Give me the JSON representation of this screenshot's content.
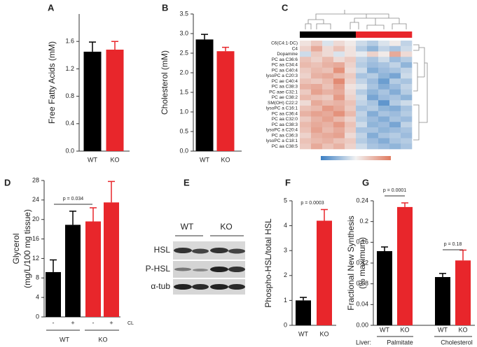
{
  "chart_data": [
    {
      "panel": "A",
      "type": "bar",
      "ylabel": [
        "Free Fatty Acids (mM)"
      ],
      "categories": [
        "WT",
        "KO"
      ],
      "values": [
        1.45,
        1.48
      ],
      "errors": [
        0.14,
        0.12
      ],
      "colors": [
        "#000000",
        "#e8262b"
      ],
      "ylim": [
        0,
        2.0
      ],
      "yticks": [
        {
          "value": 0,
          "label": "0.0"
        },
        0.4,
        0.8,
        1.2,
        1.6
      ]
    },
    {
      "panel": "B",
      "type": "bar",
      "ylabel": [
        "Cholesterol (mM)"
      ],
      "categories": [
        "WT",
        "KO"
      ],
      "values": [
        2.85,
        2.55
      ],
      "errors": [
        0.13,
        0.1
      ],
      "colors": [
        "#000000",
        "#e8262b"
      ],
      "ylim": [
        0,
        3.5
      ],
      "yticks": [
        {
          "value": 0,
          "label": "0.0"
        },
        0.5,
        {
          "value": 1,
          "label": "1.0"
        },
        1.5,
        {
          "value": 2,
          "label": "2.0"
        },
        2.5,
        {
          "value": 3,
          "label": "3.0"
        },
        3.5
      ]
    },
    {
      "panel": "C",
      "type": "heatmap",
      "rows": [
        "C6(C4:1-DC)",
        "C4",
        "Dopamine",
        "PC aa C36:6",
        "PC aa C34:4",
        "PC aa C40:4",
        "lysoPC a C20:3",
        "PC ae C40:4",
        "PC aa C38:3",
        "PC aae C32:1",
        "PC ae C38:2",
        "SM(OH) C22:2",
        "lysoPC a C16:1",
        "PC aa C36:4",
        "PC aa C32:0",
        "PC aa C38:3",
        "lysoPC a C20:4",
        "PC aa C36:3",
        "lysoPC a C18:1",
        "PC aa C38:5"
      ],
      "column_colors": [
        "#000000",
        "#000000",
        "#000000",
        "#000000",
        "#000000",
        "#e8262b",
        "#e8262b",
        "#e8262b",
        "#e8262b",
        "#e8262b"
      ],
      "clim": [
        -1.5,
        1.5
      ],
      "values": [
        [
          0.2,
          0.5,
          -0.2,
          0.3,
          0.1,
          -0.3,
          -0.5,
          -0.2,
          0.1,
          -0.4
        ],
        [
          0.4,
          0.9,
          0.3,
          0.6,
          0.2,
          -0.5,
          -0.8,
          -0.4,
          -0.6,
          -0.3
        ],
        [
          -0.3,
          0.5,
          0.3,
          -0.2,
          0.2,
          -0.1,
          0.4,
          0.1,
          0.9,
          0.3
        ],
        [
          0.6,
          0.4,
          0.7,
          0.3,
          0.5,
          -0.4,
          -0.6,
          -0.3,
          -0.7,
          -0.5
        ],
        [
          0.7,
          0.6,
          0.8,
          0.9,
          0.4,
          -0.5,
          -0.7,
          -0.6,
          -0.4,
          -0.8
        ],
        [
          0.5,
          0.7,
          0.6,
          1.2,
          0.3,
          -0.3,
          -0.9,
          -0.7,
          -0.6,
          -0.4
        ],
        [
          0.4,
          0.8,
          0.9,
          0.7,
          0.5,
          -0.6,
          -0.5,
          -0.8,
          -1.0,
          -0.3
        ],
        [
          0.6,
          0.5,
          0.7,
          1.3,
          0.4,
          -0.4,
          -0.7,
          -1.1,
          -0.5,
          -0.6
        ],
        [
          0.8,
          0.9,
          0.6,
          1.0,
          0.2,
          -0.2,
          -0.6,
          -0.9,
          -0.7,
          -0.4
        ],
        [
          0.5,
          1.0,
          0.8,
          0.9,
          0.3,
          -0.5,
          -0.8,
          -0.6,
          -0.9,
          -0.5
        ],
        [
          0.7,
          0.6,
          0.5,
          1.1,
          0.4,
          -0.3,
          -1.0,
          -0.7,
          -0.6,
          -0.8
        ],
        [
          0.3,
          0.9,
          0.7,
          0.8,
          0.6,
          -0.4,
          -0.6,
          -1.2,
          -0.5,
          -0.3
        ],
        [
          0.6,
          0.7,
          1.1,
          0.9,
          0.5,
          -0.6,
          -0.5,
          -0.8,
          -0.9,
          -0.6
        ],
        [
          0.8,
          1.0,
          0.9,
          1.2,
          0.7,
          -0.4,
          -0.9,
          -0.6,
          -0.7,
          -0.5
        ],
        [
          0.5,
          0.8,
          1.0,
          0.7,
          0.4,
          -0.5,
          -0.7,
          -0.9,
          -0.6,
          -0.7
        ],
        [
          0.7,
          0.9,
          0.8,
          1.1,
          0.6,
          -0.3,
          -0.8,
          -0.7,
          -1.0,
          -0.4
        ],
        [
          0.6,
          1.0,
          0.7,
          0.9,
          0.5,
          -0.6,
          -0.6,
          -0.8,
          -0.7,
          -0.6
        ],
        [
          0.4,
          0.8,
          0.9,
          1.0,
          0.3,
          -0.4,
          -0.9,
          -0.6,
          -0.5,
          -0.7
        ],
        [
          0.6,
          0.7,
          0.8,
          0.6,
          0.5,
          -0.5,
          -0.7,
          -0.9,
          -0.6,
          -0.5
        ],
        [
          0.5,
          0.9,
          0.6,
          0.8,
          0.4,
          -0.3,
          -0.6,
          -0.7,
          -0.8,
          -0.6
        ]
      ]
    },
    {
      "panel": "D",
      "type": "bar",
      "ylabel": [
        "Glycerol",
        "(mg/L/100 mg tissue)"
      ],
      "categories": [
        "-",
        "+",
        "-",
        "+"
      ],
      "condition_label": "CL",
      "groups": [
        "WT",
        "KO"
      ],
      "values": [
        9.2,
        18.9,
        19.6,
        23.5
      ],
      "errors": [
        2.5,
        2.8,
        2.8,
        4.3
      ],
      "colors": [
        "#000000",
        "#000000",
        "#e8262b",
        "#e8262b"
      ],
      "ylim": [
        0,
        28
      ],
      "yticks": [
        0,
        4,
        8,
        12,
        16,
        20,
        24,
        28
      ],
      "annotations": [
        "p = 0.034"
      ]
    },
    {
      "panel": "F",
      "type": "bar",
      "ylabel": [
        "Phospho-HSL/total HSL"
      ],
      "categories": [
        "WT",
        "KO"
      ],
      "values": [
        1.0,
        4.2
      ],
      "errors": [
        0.12,
        0.45
      ],
      "colors": [
        "#000000",
        "#e8262b"
      ],
      "ylim": [
        0,
        5
      ],
      "yticks": [
        0,
        1,
        2,
        3,
        4,
        5
      ],
      "annotations": [
        "p = 0.0003"
      ]
    },
    {
      "panel": "G",
      "type": "bar",
      "ylabel": [
        "Fractional New Synthesis",
        "(% maximum)"
      ],
      "categories": [
        "WT",
        "KO",
        "WT",
        "KO"
      ],
      "group_prefix": "Liver:",
      "groups": [
        "Palmitate",
        "Cholesterol"
      ],
      "values": [
        0.143,
        0.228,
        0.093,
        0.125
      ],
      "errors": [
        0.008,
        0.008,
        0.007,
        0.02
      ],
      "colors": [
        "#000000",
        "#e8262b",
        "#000000",
        "#e8262b"
      ],
      "ylim": [
        0,
        0.24
      ],
      "yticks": [
        {
          "value": 0,
          "label": "0.00"
        },
        0.04,
        0.08,
        0.12,
        0.16,
        0.2,
        0.24
      ],
      "annotations": [
        "p = 0.0001",
        "p = 0.18"
      ]
    }
  ],
  "blot": {
    "panel": "E",
    "lane_groups": [
      "WT",
      "KO"
    ],
    "rows": [
      "HSL",
      "P-HSL",
      "α-tub"
    ]
  }
}
